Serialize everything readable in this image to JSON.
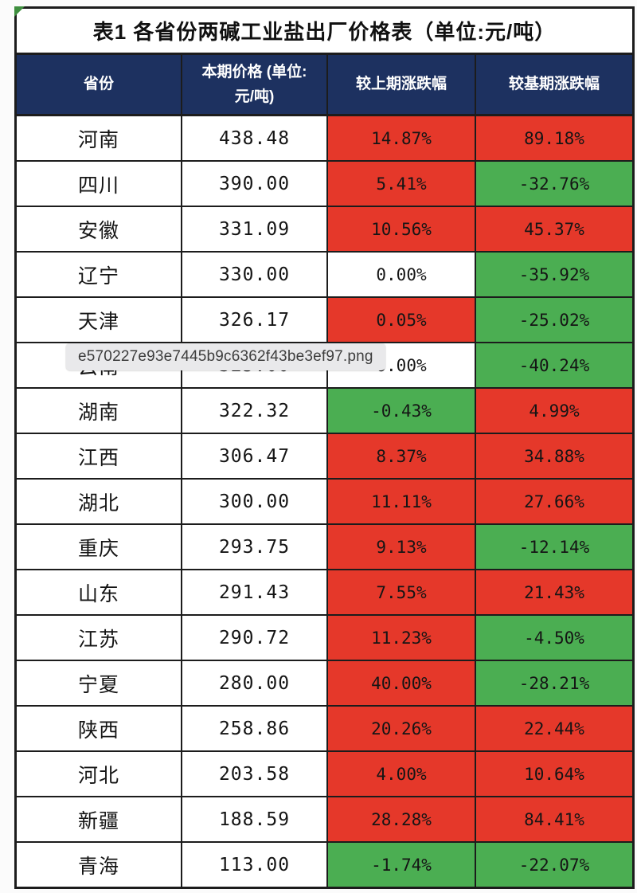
{
  "colors": {
    "red": "#e5382a",
    "green": "#4bae52",
    "header_bg": "#1d3160",
    "header_text": "#ffffff",
    "border": "#1c1c1c",
    "page_bg": "#fbfbfb",
    "corner_marker_green": "#3f8f3f",
    "tooltip_bg": "#e9e9eb"
  },
  "table": {
    "title": "表1 各省份两碱工业盐出厂价格表（单位:元/吨）",
    "header": {
      "col1": "省份",
      "col2_line1": "本期价格 (单位:",
      "col2_line2": "元/吨)",
      "col3": "较上期涨跌幅",
      "col4": "较基期涨跌幅"
    },
    "rows": [
      {
        "province": "河南",
        "price": "438.48",
        "vs_prev": "14.87%",
        "vs_prev_bg": "red",
        "vs_base": "89.18%",
        "vs_base_bg": "red"
      },
      {
        "province": "四川",
        "price": "390.00",
        "vs_prev": "5.41%",
        "vs_prev_bg": "red",
        "vs_base": "-32.76%",
        "vs_base_bg": "green"
      },
      {
        "province": "安徽",
        "price": "331.09",
        "vs_prev": "10.56%",
        "vs_prev_bg": "red",
        "vs_base": "45.37%",
        "vs_base_bg": "red"
      },
      {
        "province": "辽宁",
        "price": "330.00",
        "vs_prev": "0.00%",
        "vs_prev_bg": "white",
        "vs_base": "-35.92%",
        "vs_base_bg": "green"
      },
      {
        "province": "天津",
        "price": "326.17",
        "vs_prev": "0.05%",
        "vs_prev_bg": "red",
        "vs_base": "-25.02%",
        "vs_base_bg": "green"
      },
      {
        "province": "云南",
        "price": "325.00",
        "vs_prev": "0.00%",
        "vs_prev_bg": "white",
        "vs_base": "-40.24%",
        "vs_base_bg": "green",
        "obscured_by_tooltip": true
      },
      {
        "province": "湖南",
        "price": "322.32",
        "vs_prev": "-0.43%",
        "vs_prev_bg": "green",
        "vs_base": "4.99%",
        "vs_base_bg": "red"
      },
      {
        "province": "江西",
        "price": "306.47",
        "vs_prev": "8.37%",
        "vs_prev_bg": "red",
        "vs_base": "34.88%",
        "vs_base_bg": "red"
      },
      {
        "province": "湖北",
        "price": "300.00",
        "vs_prev": "11.11%",
        "vs_prev_bg": "red",
        "vs_base": "27.66%",
        "vs_base_bg": "red"
      },
      {
        "province": "重庆",
        "price": "293.75",
        "vs_prev": "9.13%",
        "vs_prev_bg": "red",
        "vs_base": "-12.14%",
        "vs_base_bg": "green"
      },
      {
        "province": "山东",
        "price": "291.43",
        "vs_prev": "7.55%",
        "vs_prev_bg": "red",
        "vs_base": "21.43%",
        "vs_base_bg": "red"
      },
      {
        "province": "江苏",
        "price": "290.72",
        "vs_prev": "11.23%",
        "vs_prev_bg": "red",
        "vs_base": "-4.50%",
        "vs_base_bg": "green"
      },
      {
        "province": "宁夏",
        "price": "280.00",
        "vs_prev": "40.00%",
        "vs_prev_bg": "red",
        "vs_base": "-28.21%",
        "vs_base_bg": "green"
      },
      {
        "province": "陕西",
        "price": "258.86",
        "vs_prev": "20.26%",
        "vs_prev_bg": "red",
        "vs_base": "22.44%",
        "vs_base_bg": "red"
      },
      {
        "province": "河北",
        "price": "203.58",
        "vs_prev": "4.00%",
        "vs_prev_bg": "red",
        "vs_base": "10.64%",
        "vs_base_bg": "red"
      },
      {
        "province": "新疆",
        "price": "188.59",
        "vs_prev": "28.28%",
        "vs_prev_bg": "red",
        "vs_base": "84.41%",
        "vs_base_bg": "red"
      },
      {
        "province": "青海",
        "price": "113.00",
        "vs_prev": "-1.74%",
        "vs_prev_bg": "green",
        "vs_base": "-22.07%",
        "vs_base_bg": "green"
      }
    ]
  },
  "tooltip": {
    "text": "e570227e93e7445b9c6362f43be3ef97.png"
  },
  "chart_data": {
    "type": "table",
    "title": "表1 各省份两碱工业盐出厂价格表（单位:元/吨）",
    "columns": [
      "省份",
      "本期价格 (单位:元/吨)",
      "较上期涨跌幅",
      "较基期涨跌幅"
    ],
    "rows": [
      [
        "河南",
        438.48,
        "14.87%",
        "89.18%"
      ],
      [
        "四川",
        390.0,
        "5.41%",
        "-32.76%"
      ],
      [
        "安徽",
        331.09,
        "10.56%",
        "45.37%"
      ],
      [
        "辽宁",
        330.0,
        "0.00%",
        "-35.92%"
      ],
      [
        "天津",
        326.17,
        "0.05%",
        "-25.02%"
      ],
      [
        "云南(被提示框遮挡)",
        null,
        null,
        "-40.24%"
      ],
      [
        "湖南",
        322.32,
        "-0.43%",
        "4.99%"
      ],
      [
        "江西",
        306.47,
        "8.37%",
        "34.88%"
      ],
      [
        "湖北",
        300.0,
        "11.11%",
        "27.66%"
      ],
      [
        "重庆",
        293.75,
        "9.13%",
        "-12.14%"
      ],
      [
        "山东",
        291.43,
        "7.55%",
        "21.43%"
      ],
      [
        "江苏",
        290.72,
        "11.23%",
        "-4.50%"
      ],
      [
        "宁夏",
        280.0,
        "40.00%",
        "-28.21%"
      ],
      [
        "陕西",
        258.86,
        "20.26%",
        "22.44%"
      ],
      [
        "河北",
        203.58,
        "4.00%",
        "10.64%"
      ],
      [
        "新疆",
        188.59,
        "28.28%",
        "84.41%"
      ],
      [
        "青海",
        113.0,
        "-1.74%",
        "-22.07%"
      ]
    ],
    "cell_color_coding": "red = 上涨(rise), green = 下跌(fall), white = 0.00% 持平"
  }
}
